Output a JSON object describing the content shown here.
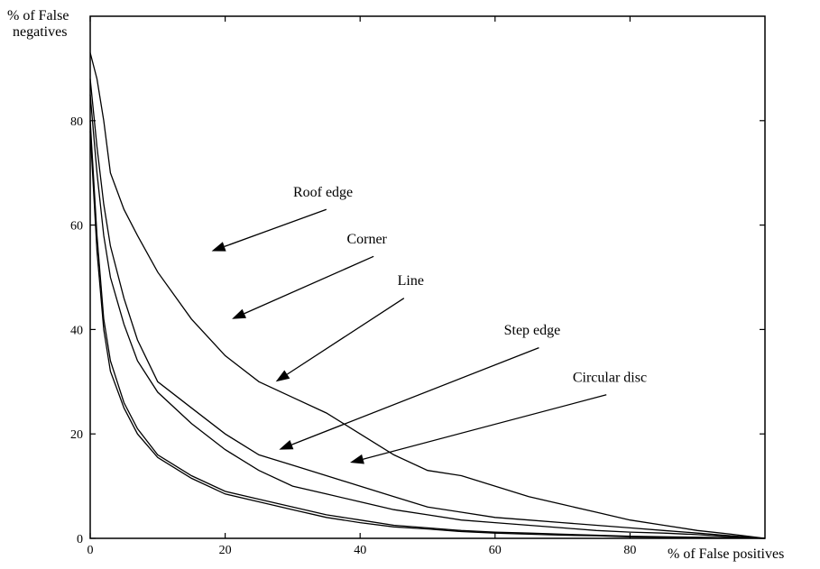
{
  "chart_data": {
    "type": "line",
    "title": "",
    "ylabel": "% of False negatives",
    "ylabel_lines": [
      "% of False",
      "negatives"
    ],
    "xlabel": "% of False positives",
    "xlim": [
      0,
      100
    ],
    "ylim": [
      0,
      100
    ],
    "x_ticks": [
      0,
      20,
      40,
      60,
      80
    ],
    "y_ticks": [
      0,
      20,
      40,
      60,
      80
    ],
    "grid": false,
    "legend": "none (inline arrow annotations)",
    "colors": {
      "line": "#000000",
      "background": "#ffffff"
    },
    "series": [
      {
        "name": "Roof edge",
        "x": [
          0,
          1,
          2,
          3,
          5,
          7,
          10,
          15,
          20,
          25,
          30,
          35,
          40,
          45,
          50,
          55,
          60,
          65,
          70,
          75,
          80,
          85,
          90,
          95,
          100
        ],
        "y": [
          93,
          88,
          80,
          70,
          63,
          58,
          51,
          42,
          35,
          30,
          27,
          24,
          20,
          16,
          13,
          12,
          10,
          8,
          6.5,
          5,
          3.5,
          2.5,
          1.5,
          0.8,
          0
        ]
      },
      {
        "name": "Corner",
        "x": [
          0,
          1,
          2,
          3,
          5,
          7,
          10,
          15,
          20,
          25,
          30,
          35,
          40,
          45,
          50,
          55,
          60,
          65,
          70,
          75,
          80,
          85,
          90,
          95,
          100
        ],
        "y": [
          88,
          75,
          64,
          56,
          46,
          38,
          30,
          25,
          20,
          16,
          14,
          12,
          10,
          8,
          6,
          5,
          4,
          3.5,
          3,
          2.5,
          2,
          1.5,
          1,
          0.5,
          0
        ]
      },
      {
        "name": "Line",
        "x": [
          0,
          1,
          2,
          3,
          5,
          7,
          10,
          15,
          20,
          25,
          30,
          35,
          40,
          45,
          50,
          55,
          60,
          65,
          70,
          75,
          80,
          85,
          90,
          95,
          100
        ],
        "y": [
          85,
          70,
          58,
          50,
          41,
          34,
          28,
          22,
          17,
          13,
          10,
          8.5,
          7,
          5.5,
          4.5,
          3.5,
          3,
          2.5,
          2,
          1.5,
          1.2,
          1,
          0.7,
          0.3,
          0
        ]
      },
      {
        "name": "Step edge",
        "x": [
          0,
          1,
          2,
          3,
          5,
          7,
          10,
          15,
          20,
          25,
          30,
          35,
          40,
          45,
          50,
          55,
          60,
          65,
          70,
          75,
          80,
          85,
          90,
          95,
          100
        ],
        "y": [
          80,
          58,
          42,
          34,
          26,
          21,
          16,
          12,
          9,
          7.5,
          6,
          4.5,
          3.5,
          2.5,
          2,
          1.5,
          1.2,
          1,
          0.8,
          0.6,
          0.4,
          0.3,
          0.2,
          0.1,
          0
        ]
      },
      {
        "name": "Circular disc",
        "x": [
          0,
          1,
          2,
          3,
          5,
          7,
          10,
          15,
          20,
          25,
          30,
          35,
          40,
          45,
          50,
          55,
          60,
          65,
          70,
          75,
          80,
          85,
          90,
          95,
          100
        ],
        "y": [
          78,
          55,
          40,
          32,
          25,
          20,
          15.5,
          11.5,
          8.5,
          7,
          5.5,
          4,
          3,
          2.2,
          1.8,
          1.3,
          1,
          0.8,
          0.6,
          0.5,
          0.3,
          0.2,
          0.1,
          0.05,
          0
        ]
      }
    ],
    "annotations": [
      {
        "text": "Roof edge",
        "label_at": [
          34.5,
          65.5
        ],
        "arrow_from": [
          35,
          63
        ],
        "arrow_to": [
          18,
          55
        ]
      },
      {
        "text": "Corner",
        "label_at": [
          41,
          56.5
        ],
        "arrow_from": [
          42,
          54
        ],
        "arrow_to": [
          21,
          42
        ]
      },
      {
        "text": "Line",
        "label_at": [
          47.5,
          48.5
        ],
        "arrow_from": [
          46.5,
          46
        ],
        "arrow_to": [
          27.5,
          30
        ]
      },
      {
        "text": "Step edge",
        "label_at": [
          65.5,
          39
        ],
        "arrow_from": [
          66.5,
          36.5
        ],
        "arrow_to": [
          28,
          17
        ]
      },
      {
        "text": "Circular disc",
        "label_at": [
          77,
          30
        ],
        "arrow_from": [
          76.5,
          27.5
        ],
        "arrow_to": [
          38.5,
          14.5
        ]
      }
    ]
  }
}
